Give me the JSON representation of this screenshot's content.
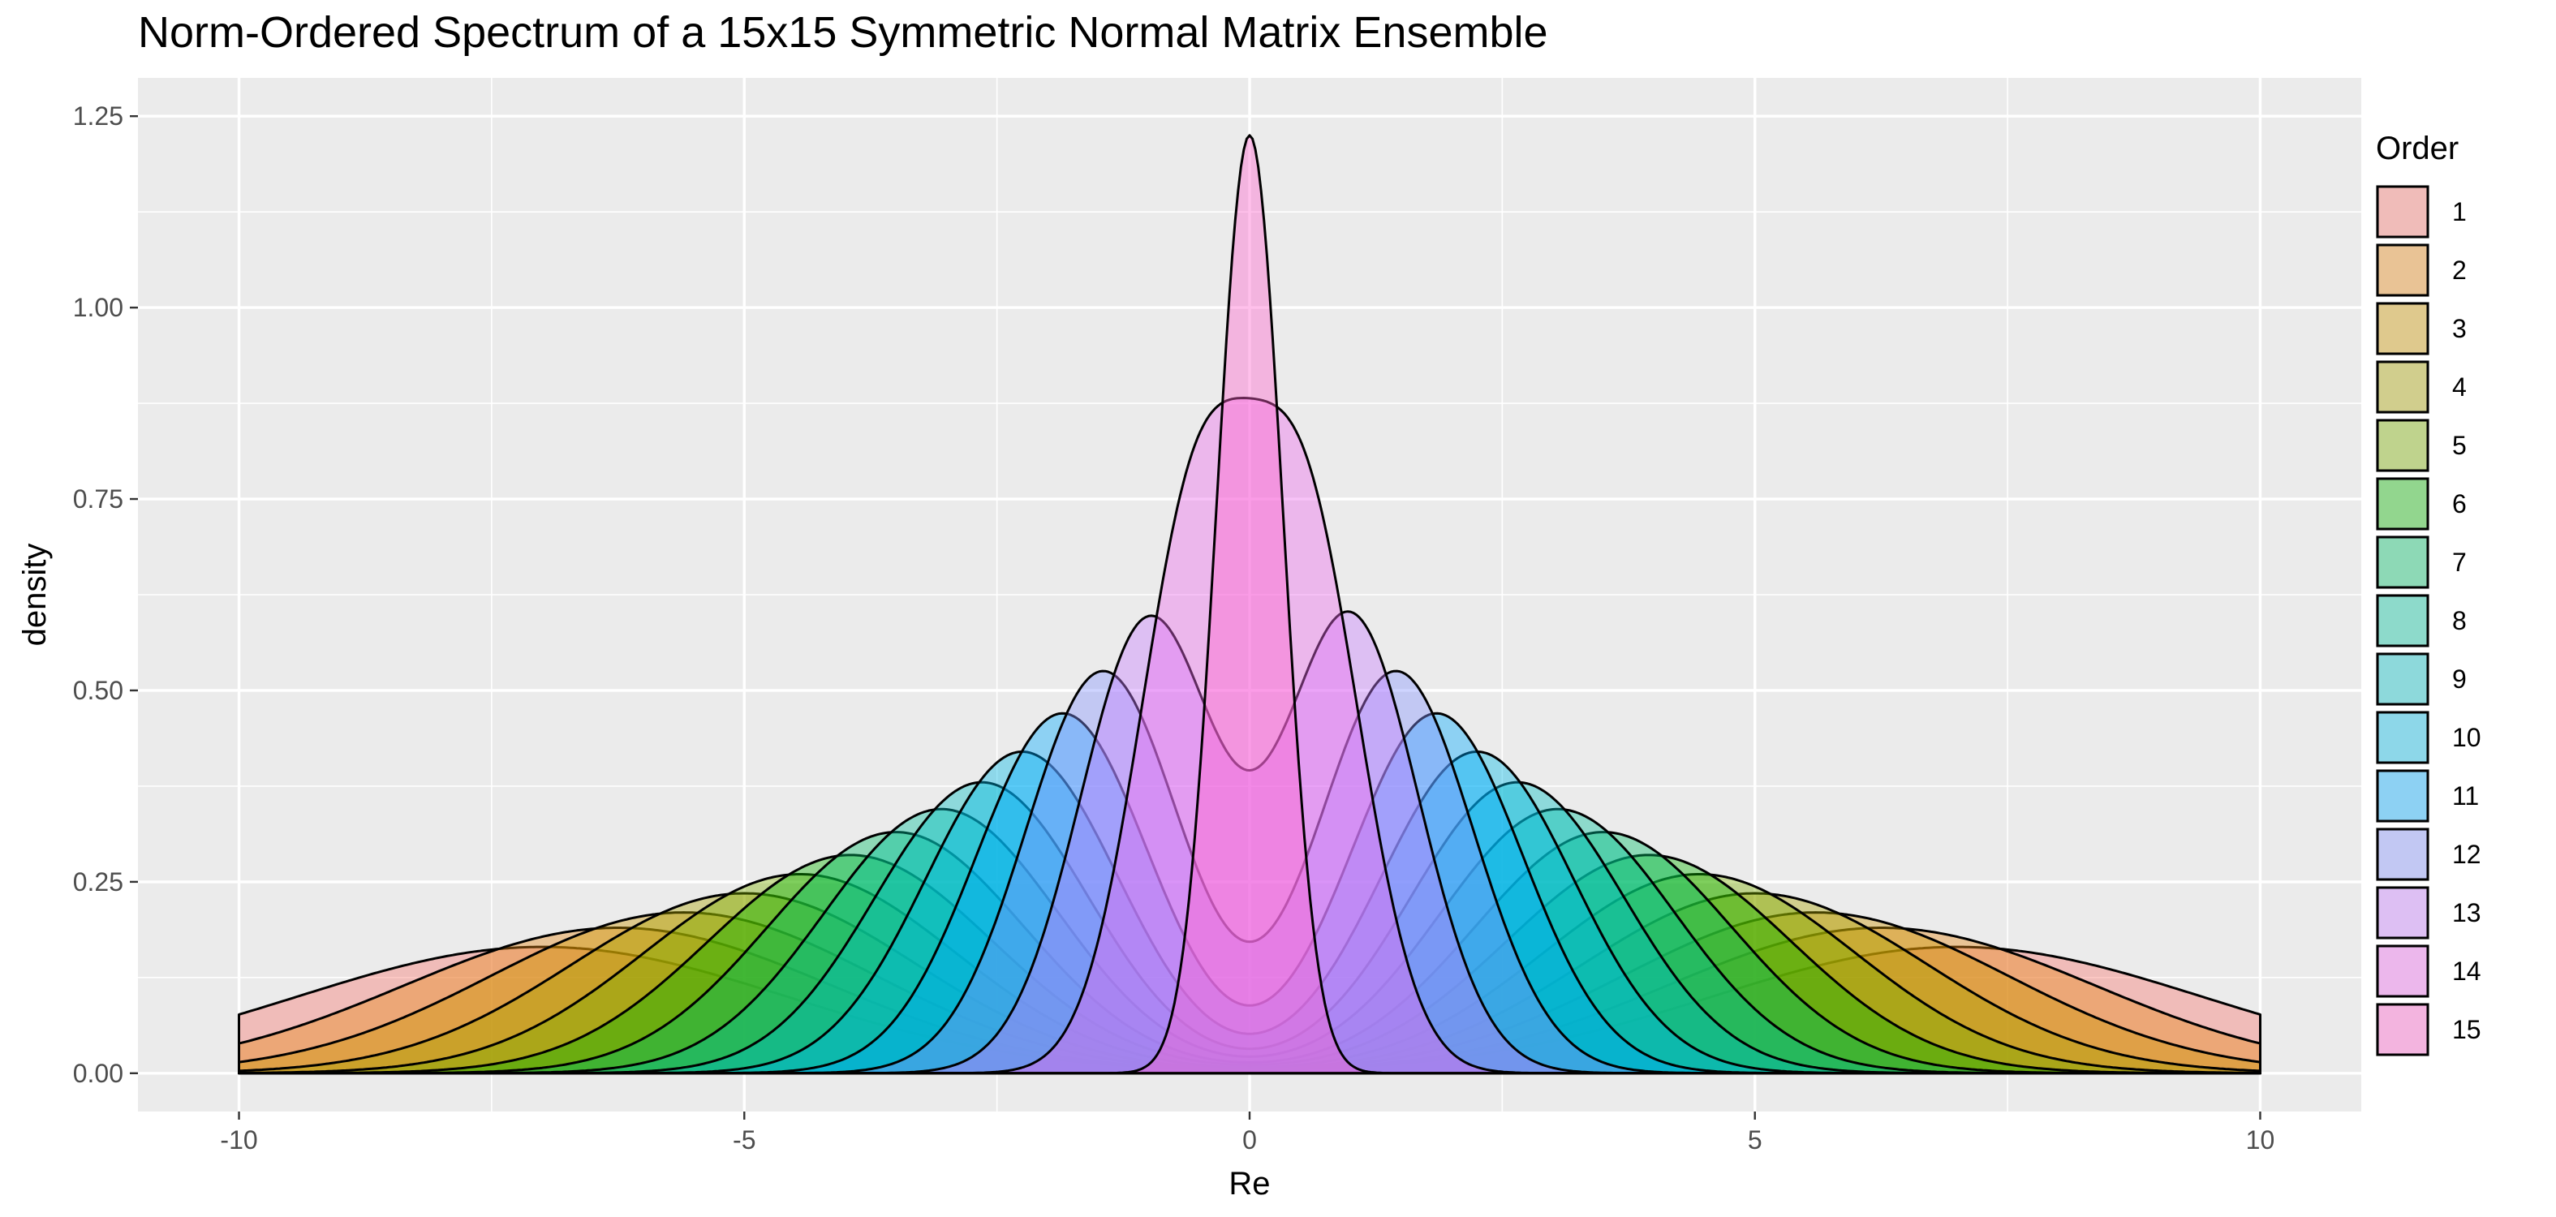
{
  "chart_data": {
    "type": "area",
    "title": "Norm-Ordered Spectrum of a 15x15 Symmetric Normal Matrix Ensemble",
    "xlabel": "Re",
    "ylabel": "density",
    "xlim": [
      -11,
      11
    ],
    "ylim": [
      -0.05,
      1.3
    ],
    "x_ticks": [
      -10,
      -5,
      0,
      5,
      10
    ],
    "x_tick_labels": [
      "-10",
      "-5",
      "0",
      "5",
      "10"
    ],
    "y_ticks": [
      0,
      0.25,
      0.5,
      0.75,
      1.0,
      1.25
    ],
    "y_tick_labels": [
      "0.00",
      "0.25",
      "0.50",
      "0.75",
      "1.00",
      "1.25"
    ],
    "grid": true,
    "legend": {
      "title": "Order",
      "position": "right"
    },
    "data_range": [
      -10,
      10
    ],
    "series": [
      {
        "name": "1",
        "color": "#F8766D",
        "peaks": [
          {
            "x": -7.0,
            "y": 0.165
          },
          {
            "x": 7.0,
            "y": 0.165
          }
        ]
      },
      {
        "name": "2",
        "color": "#E68613",
        "peaks": [
          {
            "x": -6.25,
            "y": 0.19
          },
          {
            "x": 6.25,
            "y": 0.19
          }
        ]
      },
      {
        "name": "3",
        "color": "#CD9600",
        "peaks": [
          {
            "x": -5.6,
            "y": 0.21
          },
          {
            "x": 5.6,
            "y": 0.21
          }
        ]
      },
      {
        "name": "4",
        "color": "#ABA300",
        "peaks": [
          {
            "x": -5.0,
            "y": 0.235
          },
          {
            "x": 5.0,
            "y": 0.235
          }
        ]
      },
      {
        "name": "5",
        "color": "#7CAE00",
        "peaks": [
          {
            "x": -4.45,
            "y": 0.26
          },
          {
            "x": 4.45,
            "y": 0.26
          }
        ]
      },
      {
        "name": "6",
        "color": "#0CB702",
        "peaks": [
          {
            "x": -3.95,
            "y": 0.285
          },
          {
            "x": 3.95,
            "y": 0.285
          }
        ]
      },
      {
        "name": "7",
        "color": "#00BE67",
        "peaks": [
          {
            "x": -3.5,
            "y": 0.315
          },
          {
            "x": 3.5,
            "y": 0.315
          }
        ]
      },
      {
        "name": "8",
        "color": "#00C19A",
        "peaks": [
          {
            "x": -3.05,
            "y": 0.345
          },
          {
            "x": 3.05,
            "y": 0.345
          }
        ]
      },
      {
        "name": "9",
        "color": "#00BFC4",
        "peaks": [
          {
            "x": -2.65,
            "y": 0.38
          },
          {
            "x": 2.65,
            "y": 0.38
          }
        ]
      },
      {
        "name": "10",
        "color": "#00B8E7",
        "peaks": [
          {
            "x": -2.25,
            "y": 0.42
          },
          {
            "x": 2.25,
            "y": 0.42
          }
        ]
      },
      {
        "name": "11",
        "color": "#00A9FF",
        "peaks": [
          {
            "x": -1.85,
            "y": 0.47
          },
          {
            "x": 1.85,
            "y": 0.47
          }
        ]
      },
      {
        "name": "12",
        "color": "#8494FF",
        "peaks": [
          {
            "x": -1.45,
            "y": 0.525
          },
          {
            "x": 1.45,
            "y": 0.525
          }
        ]
      },
      {
        "name": "13",
        "color": "#C77CFF",
        "peaks": [
          {
            "x": -1.0,
            "y": 0.59
          },
          {
            "x": 1.0,
            "y": 0.595
          }
        ]
      },
      {
        "name": "14",
        "color": "#ED68ED",
        "peaks": [
          {
            "x": -0.55,
            "y": 0.71
          },
          {
            "x": 0.55,
            "y": 0.705
          }
        ]
      },
      {
        "name": "15",
        "color": "#FF61CC",
        "peaks": [
          {
            "x": 0.0,
            "y": 1.225
          }
        ]
      }
    ]
  }
}
